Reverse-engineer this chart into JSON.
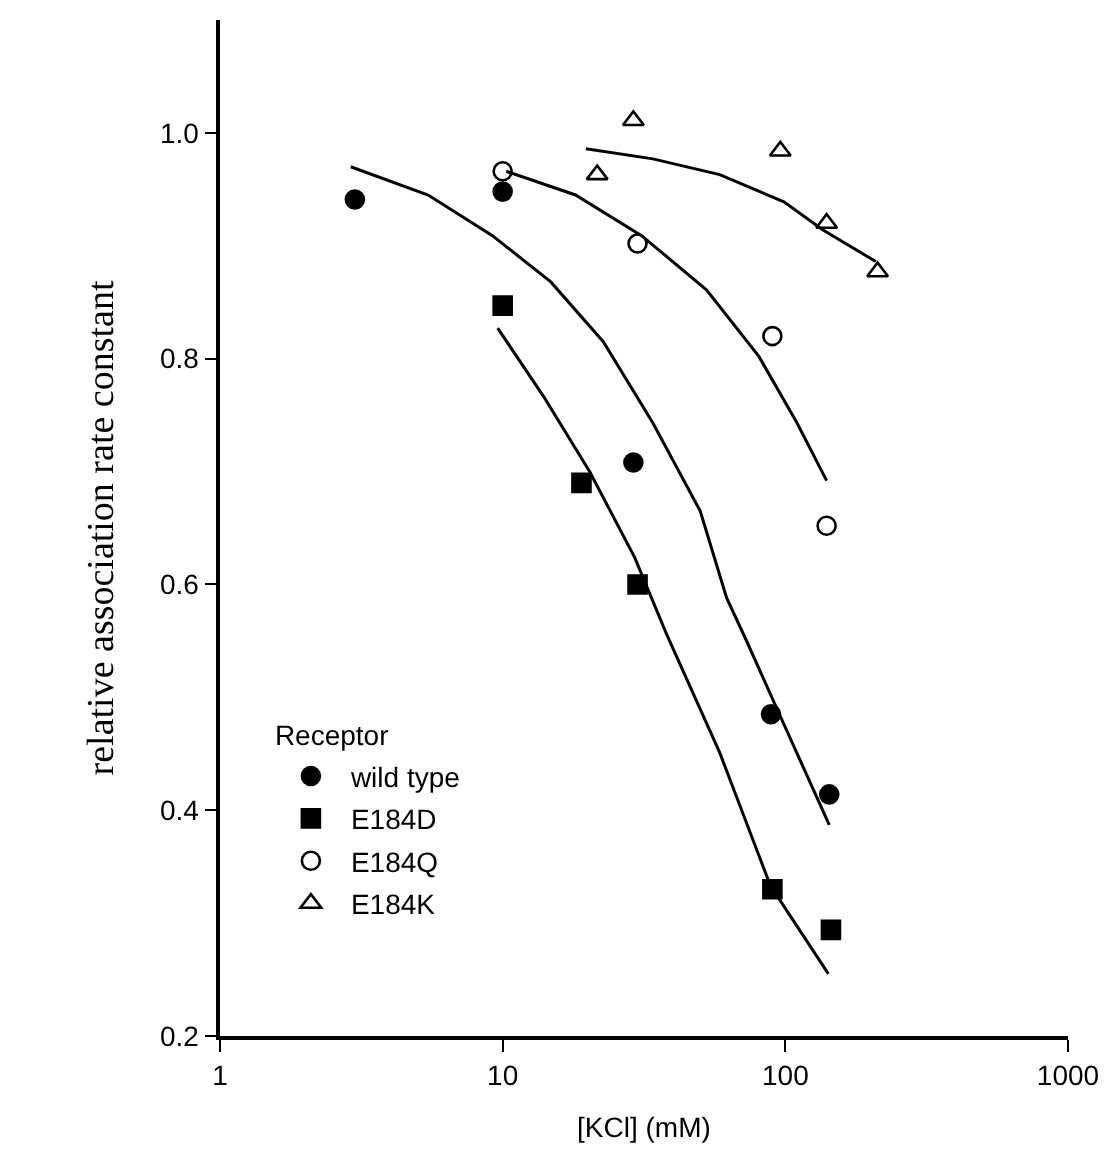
{
  "chart_data": {
    "type": "scatter",
    "xlabel": "[KCl] (mM)",
    "ylabel": "relative association rate constant",
    "legend_title": "Receptor",
    "log": "x",
    "grid": false,
    "legend": "bottom left",
    "xlim": [
      1,
      1000
    ],
    "xticks": [
      1,
      10,
      100,
      1000
    ],
    "ylim": [
      0.2,
      1.1
    ],
    "yticks": [
      {
        "value": 0.2,
        "label": "0.2"
      },
      {
        "value": 0.4,
        "label": "0.4"
      },
      {
        "value": 0.6,
        "label": "0.6"
      },
      {
        "value": 0.8,
        "label": "0.8"
      },
      {
        "value": 1.0,
        "label": "1.0"
      }
    ],
    "series": [
      {
        "name": "wild type",
        "color": "#000000",
        "marker": "circle",
        "x": [
          3,
          10,
          29,
          89,
          143
        ],
        "values": [
          0.941,
          0.948,
          0.708,
          0.485,
          0.414
        ]
      },
      {
        "name": "E184D",
        "color": "#000000",
        "marker": "square",
        "x": [
          10,
          19,
          30,
          90,
          145
        ],
        "values": [
          0.847,
          0.69,
          0.6,
          0.33,
          0.294
        ]
      },
      {
        "name": "E184Q",
        "color": "#000000",
        "marker": "circle-open",
        "x": [
          10,
          30,
          90,
          140
        ],
        "values": [
          0.966,
          0.902,
          0.82,
          0.652
        ]
      },
      {
        "name": "E184K",
        "color": "#000000",
        "marker": "triangle-open",
        "x": [
          21.6,
          29,
          96,
          140,
          212
        ],
        "values": [
          0.963,
          1.011,
          0.984,
          0.92,
          0.877
        ]
      },
      {
        "type": "line",
        "color": "#000000",
        "marker": "none",
        "line_style": "solid",
        "x": [
          2.9,
          5.45,
          9.2,
          14.8,
          22.7,
          34,
          50,
          62,
          72,
          94.5,
          143
        ],
        "values": [
          0.97,
          0.945,
          0.909,
          0.868,
          0.815,
          0.743,
          0.665,
          0.588,
          0.553,
          0.487,
          0.387
        ]
      },
      {
        "type": "line",
        "color": "#000000",
        "marker": "none",
        "line_style": "solid",
        "x": [
          9.6,
          14,
          20.3,
          29.3,
          38,
          58.6,
          88.6,
          142
        ],
        "values": [
          0.827,
          0.766,
          0.7,
          0.624,
          0.556,
          0.451,
          0.333,
          0.255
        ]
      },
      {
        "type": "line",
        "color": "#000000",
        "marker": "none",
        "line_style": "solid",
        "x": [
          10.3,
          18.1,
          31,
          52.6,
          80.6,
          110,
          140
        ],
        "values": [
          0.966,
          0.945,
          0.909,
          0.861,
          0.802,
          0.743,
          0.692
        ]
      },
      {
        "type": "line",
        "color": "#000000",
        "marker": "none",
        "line_style": "solid",
        "x": [
          19.7,
          34,
          58.6,
          98.8,
          136,
          209
        ],
        "values": [
          0.986,
          0.977,
          0.963,
          0.939,
          0.914,
          0.886
        ]
      }
    ]
  }
}
